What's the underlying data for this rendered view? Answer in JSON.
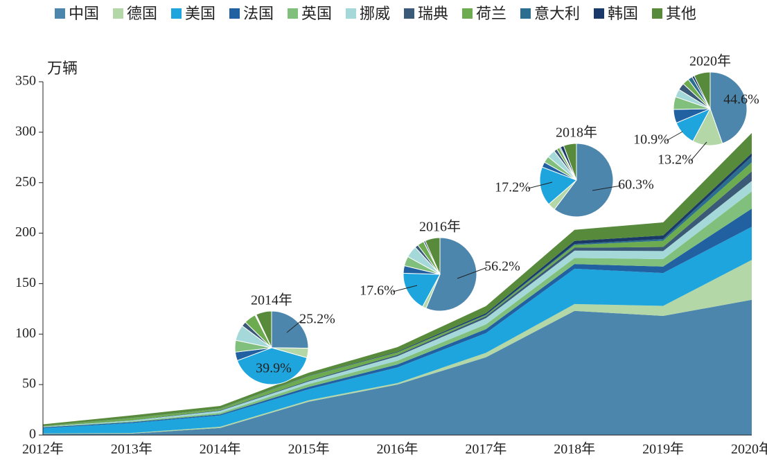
{
  "chart_data": {
    "type": "stacked_area",
    "y_label": "万辆",
    "categories": [
      "2012年",
      "2013年",
      "2014年",
      "2015年",
      "2016年",
      "2017年",
      "2018年",
      "2019年",
      "2020年"
    ],
    "ylim": [
      0,
      350
    ],
    "yticks": [
      0,
      50,
      100,
      150,
      200,
      250,
      300,
      350
    ],
    "series": [
      {
        "name": "中国",
        "color": "#4d86ad",
        "values": [
          1.3,
          1.5,
          7,
          33,
          50,
          77,
          123,
          118,
          134
        ]
      },
      {
        "name": "德国",
        "color": "#b3d7a6",
        "values": [
          0.3,
          0.6,
          1.2,
          1.5,
          1.5,
          4.5,
          6.8,
          10,
          39.5
        ]
      },
      {
        "name": "美国",
        "color": "#1fa5dd",
        "values": [
          5.3,
          9.7,
          11.2,
          11,
          15.5,
          19.5,
          35,
          32.5,
          32.8
        ]
      },
      {
        "name": "法国",
        "color": "#2161a1",
        "values": [
          0.8,
          1,
          1.1,
          2.2,
          2.9,
          3.9,
          4.6,
          6.4,
          18
        ]
      },
      {
        "name": "英国",
        "color": "#80c07c",
        "values": [
          0.3,
          0.7,
          1.5,
          2.8,
          3.7,
          4.7,
          6,
          7.4,
          17
        ]
      },
      {
        "name": "挪威",
        "color": "#a5d9d9",
        "values": [
          0.4,
          0.9,
          2,
          2.6,
          4.5,
          6.2,
          7.3,
          8,
          10.5
        ]
      },
      {
        "name": "瑞典",
        "color": "#3b5a78",
        "values": [
          0.1,
          0.2,
          0.6,
          0.9,
          1.3,
          2,
          2.9,
          4,
          9.4
        ]
      },
      {
        "name": "荷兰",
        "color": "#6cab4f",
        "values": [
          0.5,
          2.2,
          1.5,
          4.3,
          2.5,
          1,
          2.7,
          6.2,
          8.9
        ]
      },
      {
        "name": "意大利",
        "color": "#2b6e90",
        "values": [
          0.05,
          0.1,
          0.1,
          0.2,
          0.1,
          0.5,
          1,
          1.7,
          6
        ]
      },
      {
        "name": "韩国",
        "color": "#1b3968",
        "values": [
          0.05,
          0.1,
          0.1,
          0.3,
          0.6,
          1.4,
          3,
          3.5,
          3.1
        ]
      },
      {
        "name": "其他",
        "color": "#578a3b",
        "values": [
          1.5,
          2.5,
          2.5,
          3,
          4.5,
          7,
          11,
          13,
          20
        ]
      }
    ],
    "pies": [
      {
        "type": "pie",
        "title": "2014年",
        "values": [
          25.2,
          4.2,
          39.9,
          3.8,
          5.2,
          6.9,
          2.1,
          5.2,
          0.3,
          0.3,
          6.9
        ],
        "value_labels": [
          "25.2%",
          null,
          "39.9%",
          null,
          null,
          null,
          null,
          null,
          null,
          null,
          null
        ]
      },
      {
        "type": "pie",
        "title": "2016年",
        "values": [
          56.2,
          1.7,
          17.6,
          3.3,
          4.2,
          5.2,
          1.5,
          2.9,
          0.1,
          0.7,
          6.6
        ],
        "value_labels": [
          "56.2%",
          null,
          "17.6%",
          null,
          null,
          null,
          null,
          null,
          null,
          null,
          null
        ]
      },
      {
        "type": "pie",
        "title": "2018年",
        "values": [
          60.3,
          3.3,
          17.2,
          2.3,
          2.9,
          3.6,
          1.4,
          1.3,
          0.5,
          1.5,
          5.7
        ],
        "value_labels": [
          "60.3%",
          null,
          "17.2%",
          null,
          null,
          null,
          null,
          null,
          null,
          null,
          null
        ]
      },
      {
        "type": "pie",
        "title": "2020年",
        "values": [
          44.6,
          13.2,
          10.9,
          6,
          5.6,
          3.5,
          3.1,
          2.9,
          2,
          1,
          7.2
        ],
        "value_labels": [
          "44.6%",
          "13.2%",
          "10.9%",
          null,
          null,
          null,
          null,
          null,
          null,
          null,
          null
        ]
      }
    ]
  }
}
